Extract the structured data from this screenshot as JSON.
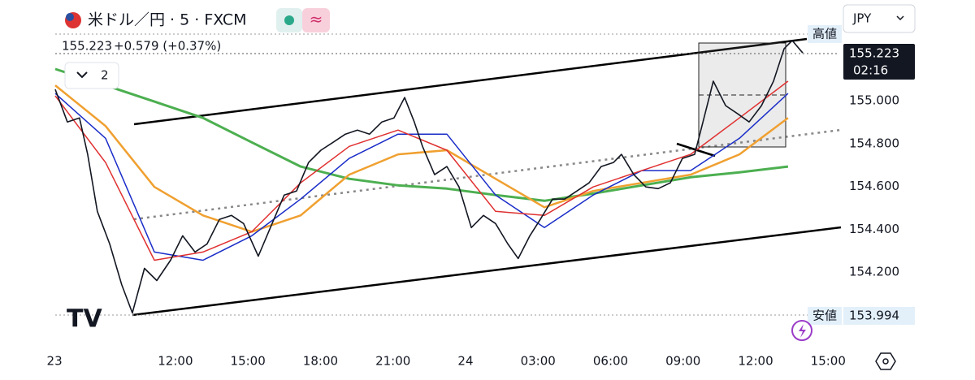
{
  "chart_data": {
    "type": "line",
    "title": "米ドル／円 · 5 · FXCM",
    "quote": {
      "price": "155.223",
      "change": "+0.579 (+0.37%)"
    },
    "xlim": [
      7.03,
      39.36
    ],
    "ylim": [
      153.86,
      155.47
    ],
    "xticks": [
      {
        "value": 7,
        "label": "23"
      },
      {
        "value": 12,
        "label": "12:00"
      },
      {
        "value": 15,
        "label": "15:00"
      },
      {
        "value": 18,
        "label": "18:00"
      },
      {
        "value": 21,
        "label": "21:00"
      },
      24,
      {
        "value": 27,
        "label": "03:00"
      },
      {
        "value": 30,
        "label": "06:00"
      },
      {
        "value": 33,
        "label": "09:00"
      },
      {
        "value": 36,
        "label": "12:00"
      },
      {
        "value": 39,
        "label": "15:00"
      }
    ],
    "yticks": [
      {
        "value": 155,
        "label": "155.000"
      },
      {
        "value": 154.8,
        "label": "154.800"
      },
      {
        "value": 154.6,
        "label": "154.600"
      },
      {
        "value": 154.4,
        "label": "154.400"
      },
      {
        "value": 154.2,
        "label": "154.200"
      }
    ],
    "grid": false,
    "series": [
      {
        "color": "#4caf50",
        "width": 3,
        "x": [
          7.03,
          9.11,
          11.13,
          13.14,
          15.16,
          17.18,
          19.19,
          21.21,
          23.23,
          25.24,
          27.26,
          29.28,
          31.29,
          33.31,
          35.33,
          37.34
        ],
        "values": [
          155.148,
          155.072,
          154.996,
          154.92,
          154.806,
          154.693,
          154.636,
          154.605,
          154.59,
          154.56,
          154.533,
          154.567,
          154.605,
          154.643,
          154.666,
          154.693
        ]
      },
      {
        "color": "#f0a030",
        "width": 2.5,
        "x": [
          7.03,
          9.11,
          11.13,
          13.14,
          15.16,
          17.18,
          19.19,
          21.21,
          23.23,
          25.24,
          27.26,
          29.28,
          31.29,
          33.31,
          35.33,
          37.34
        ],
        "values": [
          155.072,
          154.882,
          154.598,
          154.465,
          154.389,
          154.465,
          154.655,
          154.75,
          154.769,
          154.636,
          154.503,
          154.579,
          154.617,
          154.655,
          154.75,
          154.92
        ]
      },
      {
        "color": "#1a2dc8",
        "width": 1.5,
        "x": [
          7.03,
          9.11,
          11.13,
          13.14,
          15.16,
          17.18,
          19.19,
          21.21,
          23.23,
          25.24,
          27.26,
          29.28,
          31.29,
          33.31,
          35.33,
          37.34
        ],
        "values": [
          155.034,
          154.825,
          154.294,
          154.256,
          154.37,
          154.541,
          154.731,
          154.844,
          154.844,
          154.56,
          154.408,
          154.56,
          154.674,
          154.674,
          154.825,
          155.034
        ]
      },
      {
        "color": "#e03030",
        "width": 1.5,
        "x": [
          7.03,
          9.11,
          11.13,
          13.14,
          15.16,
          17.18,
          19.19,
          21.21,
          23.23,
          25.24,
          27.26,
          29.28,
          31.29,
          33.31,
          35.33,
          37.34
        ],
        "values": [
          155.023,
          154.712,
          154.256,
          154.294,
          154.389,
          154.617,
          154.787,
          154.863,
          154.769,
          154.484,
          154.465,
          154.598,
          154.674,
          154.75,
          154.92,
          155.091
        ]
      },
      {
        "color": "#131722",
        "width": 1.6,
        "x": [
          7.03,
          7.53,
          8.03,
          8.37,
          8.77,
          9.28,
          9.78,
          10.22,
          10.72,
          11.23,
          11.8,
          12.3,
          12.81,
          13.31,
          13.82,
          14.32,
          14.82,
          15.43,
          15.93,
          16.5,
          17.01,
          17.51,
          18.02,
          18.52,
          19.03,
          19.53,
          20.03,
          20.54,
          21.04,
          21.48,
          21.88,
          22.22,
          22.72,
          23.23,
          23.73,
          24.24,
          24.74,
          25.24,
          25.75,
          26.18,
          26.66,
          27.09,
          27.6,
          28.1,
          28.61,
          29.11,
          29.61,
          30.12,
          30.45,
          30.96,
          31.46,
          31.97,
          32.47,
          32.97,
          33.48,
          33.82,
          34.25,
          34.76,
          35.26,
          35.73,
          36.24,
          36.74,
          37.18,
          37.51,
          37.95
        ],
        "values": [
          155.053,
          154.901,
          154.92,
          154.75,
          154.484,
          154.332,
          154.142,
          154.01,
          154.218,
          154.161,
          154.256,
          154.37,
          154.294,
          154.332,
          154.446,
          154.465,
          154.427,
          154.275,
          154.408,
          154.56,
          154.579,
          154.712,
          154.769,
          154.806,
          154.844,
          154.863,
          154.844,
          154.901,
          154.92,
          155.015,
          154.901,
          154.787,
          154.655,
          154.693,
          154.598,
          154.408,
          154.465,
          154.427,
          154.332,
          154.264,
          154.37,
          154.446,
          154.541,
          154.541,
          154.579,
          154.617,
          154.693,
          154.712,
          154.75,
          154.655,
          154.598,
          154.59,
          154.617,
          154.731,
          154.75,
          154.901,
          155.091,
          154.977,
          154.939,
          154.901,
          154.977,
          155.091,
          155.243,
          155.281,
          155.223
        ]
      }
    ]
  },
  "ui": {
    "currency": "JPY",
    "indicators": "2",
    "high_label": "高値",
    "low_label": "安値",
    "last_price": "155.223",
    "countdown": "02:16",
    "low_price": "153.994"
  }
}
